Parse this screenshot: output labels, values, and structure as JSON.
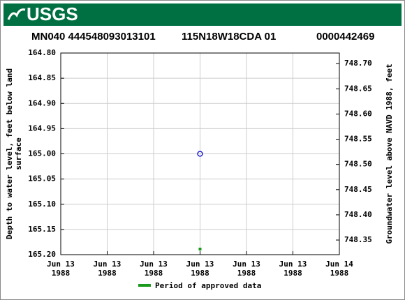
{
  "header": {
    "logo_text": "USGS"
  },
  "chart_data": {
    "type": "scatter",
    "title_parts": [
      "MN040 444548093013101",
      "115N18W18CDA   01",
      "0000442469"
    ],
    "y_label": [
      "Depth to water level, feet below land",
      "surface"
    ],
    "y2_label": "Groundwater level above NAVD 1988, feet",
    "x": [
      12
    ],
    "values": [
      165.0
    ],
    "color": "#0000cc",
    "marker": "open-circle",
    "approved_period": {
      "name": "Period of approved data",
      "color": "#1a9a1a",
      "x": [
        12
      ]
    },
    "xlim": [
      0,
      24
    ],
    "xticks": [
      {
        "value": 0,
        "label": "Jun 13 1988"
      },
      {
        "value": 4,
        "label": "Jun 13 1988"
      },
      {
        "value": 8,
        "label": "Jun 13 1988"
      },
      {
        "value": 12,
        "label": "Jun 13 1988"
      },
      {
        "value": 16,
        "label": "Jun 13 1988"
      },
      {
        "value": 20,
        "label": "Jun 13 1988"
      },
      {
        "value": 24,
        "label": "Jun 14 1988"
      }
    ],
    "ylim": [
      164.8,
      165.2
    ],
    "y_inverted": true,
    "yticks": [
      {
        "value": 164.8,
        "label": "164.80"
      },
      164.85,
      {
        "value": 164.9,
        "label": "164.90"
      },
      164.95,
      {
        "value": 165.0,
        "label": "165.00"
      },
      165.05,
      {
        "value": 165.1,
        "label": "165.10"
      },
      165.15,
      {
        "value": 165.2,
        "label": "165.20"
      }
    ],
    "y2lim": [
      748.321,
      748.721
    ],
    "y2ticks": [
      {
        "value": 748.7,
        "label": "748.70"
      },
      748.65,
      {
        "value": 748.6,
        "label": "748.60"
      },
      748.55,
      {
        "value": 748.5,
        "label": "748.50"
      },
      748.45,
      {
        "value": 748.4,
        "label": "748.40"
      },
      748.35
    ],
    "grid": true
  }
}
